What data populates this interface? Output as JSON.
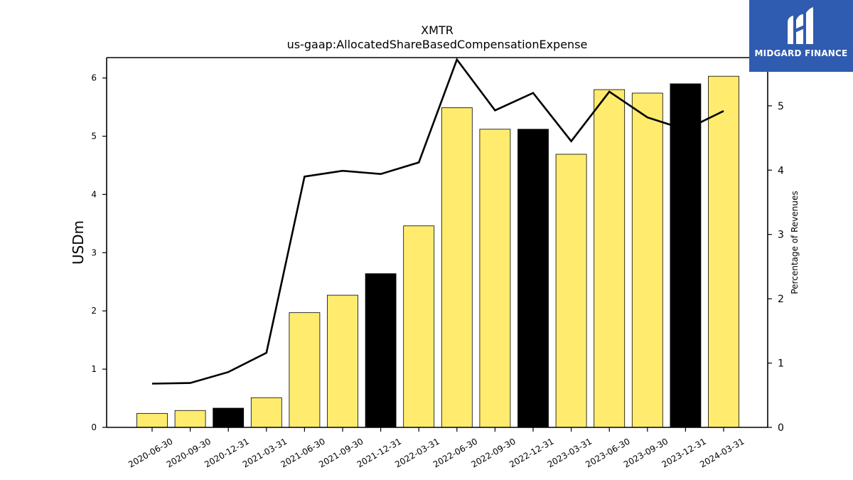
{
  "logo": {
    "text": "MIDGARD FINANCE",
    "background": "#2f5bb0",
    "icon": "midgard-logo-mark"
  },
  "chart_data": {
    "type": "bar",
    "title": "XMTR",
    "subtitle": "us-gaap:AllocatedShareBasedCompensationExpense",
    "ylabel": "USDm",
    "y2label": "Percentage of Revenues",
    "ylim": [
      0,
      6.35
    ],
    "y2lim": [
      0,
      5.75
    ],
    "yticks": [
      0,
      1,
      2,
      3,
      4,
      5,
      6
    ],
    "y2ticks": [
      0,
      1,
      2,
      3,
      4,
      5
    ],
    "colors": {
      "bar_default": "#ffec6e",
      "bar_highlight": "#000000",
      "line": "#000000"
    },
    "categories": [
      "2020-06-30",
      "2020-09-30",
      "2020-12-31",
      "2021-03-31",
      "2021-06-30",
      "2021-09-30",
      "2021-12-31",
      "2022-03-31",
      "2022-06-30",
      "2022-09-30",
      "2022-12-31",
      "2023-03-31",
      "2023-06-30",
      "2023-09-30",
      "2023-12-31",
      "2024-03-31"
    ],
    "series": [
      {
        "type": "bar",
        "axis": "left",
        "values": [
          0.24,
          0.29,
          0.33,
          0.51,
          1.97,
          2.27,
          2.64,
          3.46,
          5.49,
          5.12,
          5.12,
          4.69,
          5.8,
          5.74,
          5.9,
          6.03
        ],
        "highlight": [
          false,
          false,
          true,
          false,
          false,
          false,
          true,
          false,
          false,
          false,
          true,
          false,
          false,
          false,
          true,
          false
        ]
      },
      {
        "type": "line",
        "axis": "right",
        "values": [
          0.68,
          0.69,
          0.86,
          1.16,
          3.9,
          3.99,
          3.94,
          4.12,
          5.72,
          4.93,
          5.2,
          4.45,
          5.22,
          4.82,
          4.63,
          4.92
        ]
      }
    ],
    "grid": false,
    "legend": "none"
  }
}
